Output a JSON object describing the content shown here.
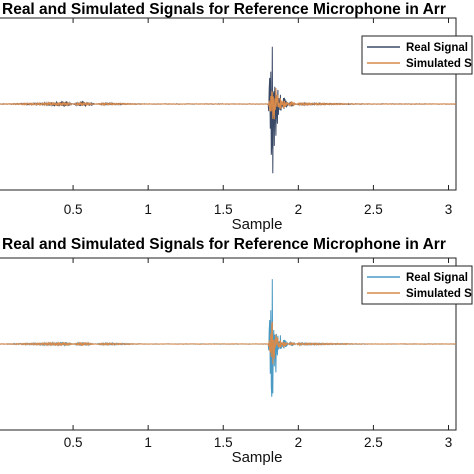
{
  "chart_data": [
    {
      "type": "line",
      "title": "Real and Simulated Signals for Reference Microphone in Arr",
      "xlabel": "Sample",
      "ylabel": "",
      "x_ticks": [
        0.5,
        1,
        1.5,
        2,
        2.5,
        3
      ],
      "x_tick_labels": [
        "0.5",
        "1",
        "1.5",
        "2",
        "2.5",
        "3"
      ],
      "xlim": [
        0,
        3.05
      ],
      "ylim": [
        -1,
        1
      ],
      "grid": false,
      "legend_position": "top-right",
      "series": [
        {
          "name": "Real Signal",
          "color": "#3a4a66",
          "x": [
            0.0,
            0.3,
            0.45,
            0.55,
            0.7,
            1.0,
            1.5,
            1.8,
            1.83,
            1.835,
            1.84,
            1.85,
            1.86,
            1.88,
            1.9,
            1.95,
            2.0,
            2.5,
            3.0
          ],
          "y": [
            0.0,
            0.01,
            0.03,
            -0.03,
            0.01,
            0.0,
            0.0,
            0.0,
            0.95,
            -0.6,
            0.55,
            -0.4,
            0.3,
            -0.12,
            0.08,
            -0.03,
            0.01,
            0.0,
            0.0
          ]
        },
        {
          "name": "Simulated S",
          "color": "#d98a4a",
          "x": [
            0.0,
            0.3,
            0.45,
            0.55,
            0.7,
            1.0,
            1.5,
            1.8,
            1.83,
            1.835,
            1.84,
            1.85,
            1.86,
            1.88,
            1.9,
            1.95,
            2.0,
            2.5,
            3.0
          ],
          "y": [
            0.0,
            0.01,
            0.02,
            -0.02,
            0.01,
            0.0,
            0.0,
            0.0,
            0.2,
            -0.25,
            0.22,
            -0.2,
            0.15,
            -0.1,
            0.06,
            -0.03,
            0.01,
            0.0,
            0.0
          ]
        }
      ]
    },
    {
      "type": "line",
      "title": "Real and Simulated Signals for Reference Microphone in Arr",
      "xlabel": "Sample",
      "ylabel": "",
      "x_ticks": [
        0.5,
        1,
        1.5,
        2,
        2.5,
        3
      ],
      "x_tick_labels": [
        "0.5",
        "1",
        "1.5",
        "2",
        "2.5",
        "3"
      ],
      "xlim": [
        0,
        3.05
      ],
      "ylim": [
        -1,
        1
      ],
      "grid": false,
      "legend_position": "top-right",
      "series": [
        {
          "name": "Real Signal",
          "color": "#4a9ac4",
          "x": [
            0.0,
            0.3,
            0.45,
            0.55,
            0.7,
            1.0,
            1.5,
            1.8,
            1.83,
            1.835,
            1.84,
            1.85,
            1.86,
            1.88,
            1.9,
            1.95,
            2.0,
            2.5,
            3.0
          ],
          "y": [
            0.0,
            0.01,
            0.02,
            -0.02,
            0.01,
            0.0,
            0.0,
            0.0,
            0.9,
            -0.5,
            0.45,
            -0.35,
            0.2,
            -0.12,
            0.07,
            -0.03,
            0.01,
            0.0,
            0.0
          ]
        },
        {
          "name": "Simulated S",
          "color": "#d98a4a",
          "x": [
            0.0,
            0.3,
            0.45,
            0.55,
            0.7,
            1.0,
            1.5,
            1.8,
            1.83,
            1.835,
            1.84,
            1.85,
            1.86,
            1.88,
            1.9,
            1.95,
            2.0,
            2.5,
            3.0
          ],
          "y": [
            0.0,
            0.01,
            0.02,
            -0.02,
            0.01,
            0.0,
            0.0,
            0.0,
            0.3,
            -0.25,
            0.2,
            -0.15,
            0.1,
            -0.06,
            0.04,
            -0.02,
            0.01,
            0.0,
            0.0
          ]
        }
      ]
    }
  ]
}
